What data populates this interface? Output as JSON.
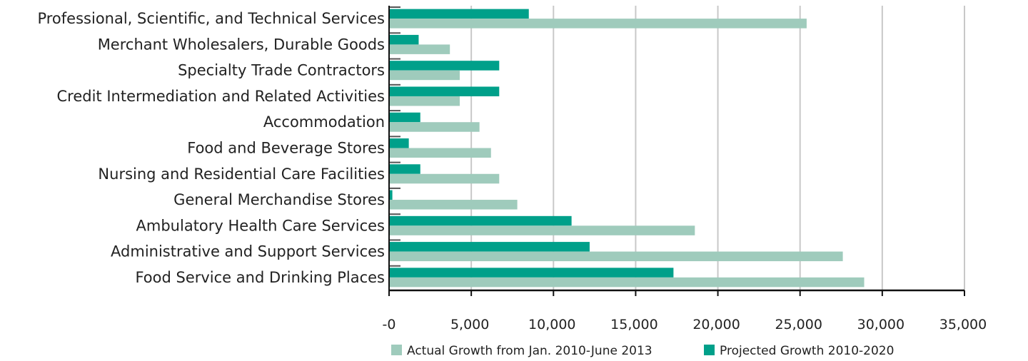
{
  "chart_data": {
    "type": "bar",
    "orientation": "horizontal",
    "title": "",
    "xlabel": "",
    "ylabel": "",
    "xlim": [
      0,
      35000
    ],
    "grid": true,
    "legend_position": "bottom",
    "categories": [
      "Professional, Scientific, and Technical Services",
      "Merchant Wholesalers, Durable Goods",
      "Specialty Trade Contractors",
      "Credit Intermediation and Related Activities",
      "Accommodation",
      "Food and Beverage Stores",
      "Nursing and Residential Care Facilities",
      "General Merchandise Stores",
      "Ambulatory Health Care Services",
      "Administrative and Support Services",
      "Food Service and Drinking Places"
    ],
    "series": [
      {
        "name": "Actual Growth from Jan. 2010-June 2013",
        "color": "#9fcbbc",
        "values": [
          25400,
          3700,
          4300,
          4300,
          5500,
          6200,
          6700,
          7800,
          18600,
          27600,
          28900
        ]
      },
      {
        "name": "Projected Growth 2010-2020",
        "color": "#00a08a",
        "values": [
          8500,
          1800,
          6700,
          6700,
          1900,
          1200,
          1900,
          200,
          11100,
          12200,
          17300
        ]
      }
    ],
    "x_ticks": [
      "-0",
      "5,000",
      "10,000",
      "15,000",
      "20,000",
      "25,000",
      "30,000",
      "35,000"
    ],
    "x_tick_values": [
      0,
      5000,
      10000,
      15000,
      20000,
      25000,
      30000,
      35000
    ]
  }
}
